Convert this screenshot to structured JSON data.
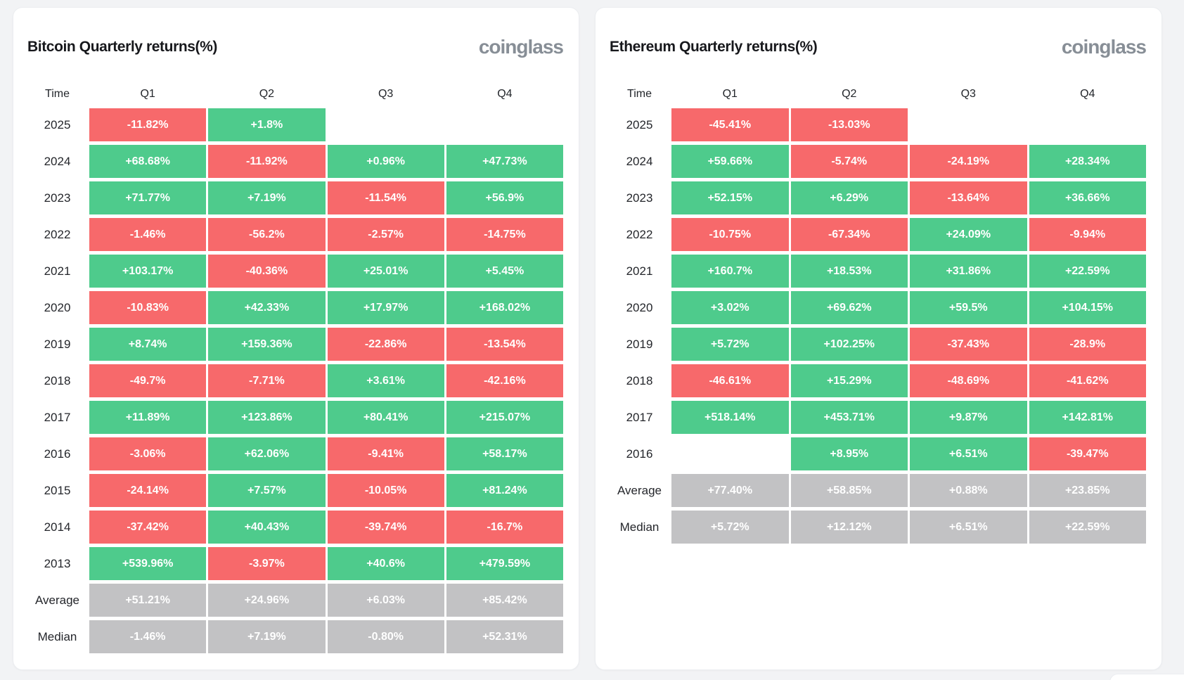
{
  "colors": {
    "positive": "#4ecb8c",
    "negative": "#f7696b",
    "neutral": "#c2c2c4",
    "page_background": "#f2f3f5",
    "card_background": "#ffffff"
  },
  "chart_data": [
    {
      "type": "table",
      "title": "Bitcoin Quarterly returns(%)",
      "brand": "coinglass",
      "columns": [
        "Time",
        "Q1",
        "Q2",
        "Q3",
        "Q4"
      ],
      "rows": [
        {
          "label": "2025",
          "kind": "year",
          "values": [
            "-11.82%",
            "+1.8%",
            "",
            ""
          ]
        },
        {
          "label": "2024",
          "kind": "year",
          "values": [
            "+68.68%",
            "-11.92%",
            "+0.96%",
            "+47.73%"
          ]
        },
        {
          "label": "2023",
          "kind": "year",
          "values": [
            "+71.77%",
            "+7.19%",
            "-11.54%",
            "+56.9%"
          ]
        },
        {
          "label": "2022",
          "kind": "year",
          "values": [
            "-1.46%",
            "-56.2%",
            "-2.57%",
            "-14.75%"
          ]
        },
        {
          "label": "2021",
          "kind": "year",
          "values": [
            "+103.17%",
            "-40.36%",
            "+25.01%",
            "+5.45%"
          ]
        },
        {
          "label": "2020",
          "kind": "year",
          "values": [
            "-10.83%",
            "+42.33%",
            "+17.97%",
            "+168.02%"
          ]
        },
        {
          "label": "2019",
          "kind": "year",
          "values": [
            "+8.74%",
            "+159.36%",
            "-22.86%",
            "-13.54%"
          ]
        },
        {
          "label": "2018",
          "kind": "year",
          "values": [
            "-49.7%",
            "-7.71%",
            "+3.61%",
            "-42.16%"
          ]
        },
        {
          "label": "2017",
          "kind": "year",
          "values": [
            "+11.89%",
            "+123.86%",
            "+80.41%",
            "+215.07%"
          ]
        },
        {
          "label": "2016",
          "kind": "year",
          "values": [
            "-3.06%",
            "+62.06%",
            "-9.41%",
            "+58.17%"
          ]
        },
        {
          "label": "2015",
          "kind": "year",
          "values": [
            "-24.14%",
            "+7.57%",
            "-10.05%",
            "+81.24%"
          ]
        },
        {
          "label": "2014",
          "kind": "year",
          "values": [
            "-37.42%",
            "+40.43%",
            "-39.74%",
            "-16.7%"
          ]
        },
        {
          "label": "2013",
          "kind": "year",
          "values": [
            "+539.96%",
            "-3.97%",
            "+40.6%",
            "+479.59%"
          ]
        },
        {
          "label": "Average",
          "kind": "stat",
          "values": [
            "+51.21%",
            "+24.96%",
            "+6.03%",
            "+85.42%"
          ]
        },
        {
          "label": "Median",
          "kind": "stat",
          "values": [
            "-1.46%",
            "+7.19%",
            "-0.80%",
            "+52.31%"
          ]
        }
      ]
    },
    {
      "type": "table",
      "title": "Ethereum Quarterly returns(%)",
      "brand": "coinglass",
      "columns": [
        "Time",
        "Q1",
        "Q2",
        "Q3",
        "Q4"
      ],
      "rows": [
        {
          "label": "2025",
          "kind": "year",
          "values": [
            "-45.41%",
            "-13.03%",
            "",
            ""
          ]
        },
        {
          "label": "2024",
          "kind": "year",
          "values": [
            "+59.66%",
            "-5.74%",
            "-24.19%",
            "+28.34%"
          ]
        },
        {
          "label": "2023",
          "kind": "year",
          "values": [
            "+52.15%",
            "+6.29%",
            "-13.64%",
            "+36.66%"
          ]
        },
        {
          "label": "2022",
          "kind": "year",
          "values": [
            "-10.75%",
            "-67.34%",
            "+24.09%",
            "-9.94%"
          ]
        },
        {
          "label": "2021",
          "kind": "year",
          "values": [
            "+160.7%",
            "+18.53%",
            "+31.86%",
            "+22.59%"
          ]
        },
        {
          "label": "2020",
          "kind": "year",
          "values": [
            "+3.02%",
            "+69.62%",
            "+59.5%",
            "+104.15%"
          ]
        },
        {
          "label": "2019",
          "kind": "year",
          "values": [
            "+5.72%",
            "+102.25%",
            "-37.43%",
            "-28.9%"
          ]
        },
        {
          "label": "2018",
          "kind": "year",
          "values": [
            "-46.61%",
            "+15.29%",
            "-48.69%",
            "-41.62%"
          ]
        },
        {
          "label": "2017",
          "kind": "year",
          "values": [
            "+518.14%",
            "+453.71%",
            "+9.87%",
            "+142.81%"
          ]
        },
        {
          "label": "2016",
          "kind": "year",
          "values": [
            "",
            "+8.95%",
            "+6.51%",
            "-39.47%"
          ]
        },
        {
          "label": "Average",
          "kind": "stat",
          "values": [
            "+77.40%",
            "+58.85%",
            "+0.88%",
            "+23.85%"
          ]
        },
        {
          "label": "Median",
          "kind": "stat",
          "values": [
            "+5.72%",
            "+12.12%",
            "+6.51%",
            "+22.59%"
          ]
        }
      ]
    }
  ]
}
